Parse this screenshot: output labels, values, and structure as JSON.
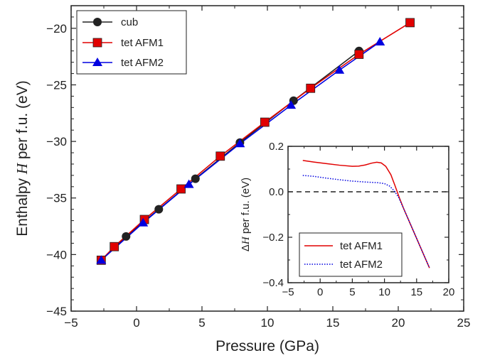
{
  "colors": {
    "cub": "#222222",
    "afm1": "#e10000",
    "afm2": "#0000e0",
    "axis": "#222222"
  },
  "chart_data": [
    {
      "type": "line",
      "title": "",
      "xlabel": "Pressure (GPa)",
      "ylabel_prefix": "Enthalpy ",
      "ylabel_symbol": "H",
      "ylabel_suffix": " per f.u. (eV)",
      "xlim": [
        -5,
        25
      ],
      "ylim": [
        -45,
        -18
      ],
      "xticks": [
        -5,
        0,
        5,
        10,
        15,
        20,
        25
      ],
      "yticks": [
        -45,
        -40,
        -35,
        -30,
        -25,
        -20
      ],
      "xtick_labels": [
        "−5",
        "0",
        "5",
        "10",
        "15",
        "20",
        "25"
      ],
      "ytick_labels": [
        "−45",
        "−40",
        "−35",
        "−30",
        "−25",
        "−20"
      ],
      "grid": false,
      "legend_position": "top-left",
      "series": [
        {
          "name": "cub",
          "marker": "circle",
          "x": [
            -2.7,
            -0.8,
            1.7,
            4.5,
            7.9,
            12.0,
            17.0
          ],
          "y": [
            -40.5,
            -38.4,
            -36.0,
            -33.3,
            -30.1,
            -26.4,
            -22.0
          ]
        },
        {
          "name": "tet AFM1",
          "marker": "square",
          "x": [
            -2.7,
            -1.7,
            0.6,
            3.4,
            6.4,
            9.8,
            13.3,
            17.0,
            20.9
          ],
          "y": [
            -40.5,
            -39.3,
            -36.9,
            -34.2,
            -31.3,
            -28.3,
            -25.3,
            -22.3,
            -19.5
          ]
        },
        {
          "name": "tet AFM2",
          "marker": "triangle",
          "x": [
            -2.7,
            0.5,
            4.0,
            7.9,
            11.8,
            15.5,
            18.6
          ],
          "y": [
            -40.5,
            -37.2,
            -33.8,
            -30.2,
            -26.8,
            -23.7,
            -21.2
          ]
        }
      ]
    },
    {
      "type": "line",
      "title": "",
      "xlabel": "",
      "ylabel_prefix": "Δ",
      "ylabel_symbol": "H",
      "ylabel_suffix": " per f.u. (eV)",
      "xlim": [
        -5,
        20
      ],
      "ylim": [
        -0.4,
        0.2
      ],
      "xticks": [
        -5,
        0,
        5,
        10,
        15,
        20
      ],
      "yticks": [
        -0.4,
        -0.2,
        0.0,
        0.2
      ],
      "xtick_labels": [
        "−5",
        "0",
        "5",
        "10",
        "15",
        "20"
      ],
      "ytick_labels": [
        "−0.4",
        "−0.2",
        "0.0",
        "0.2"
      ],
      "reference_line": 0.0,
      "grid": false,
      "legend_position": "bottom-left",
      "series": [
        {
          "name": "tet AFM1",
          "style": "solid",
          "x": [
            -2.7,
            -1,
            1,
            3,
            5,
            6,
            7,
            8,
            8.8,
            9.5,
            10.2,
            11,
            11.6,
            12.3,
            13,
            14,
            15,
            16,
            17
          ],
          "y": [
            0.138,
            0.131,
            0.124,
            0.117,
            0.112,
            0.113,
            0.118,
            0.126,
            0.13,
            0.127,
            0.112,
            0.075,
            0.03,
            -0.025,
            -0.075,
            -0.14,
            -0.205,
            -0.27,
            -0.335
          ]
        },
        {
          "name": "tet AFM2",
          "style": "dotted",
          "x": [
            -2.7,
            -1,
            1,
            3,
            5,
            7,
            9,
            10,
            10.8,
            11.5,
            12.2,
            13,
            14,
            15,
            16,
            17
          ],
          "y": [
            0.072,
            0.068,
            0.06,
            0.053,
            0.047,
            0.043,
            0.04,
            0.036,
            0.025,
            0.005,
            -0.025,
            -0.075,
            -0.14,
            -0.205,
            -0.27,
            -0.335
          ]
        }
      ]
    }
  ]
}
